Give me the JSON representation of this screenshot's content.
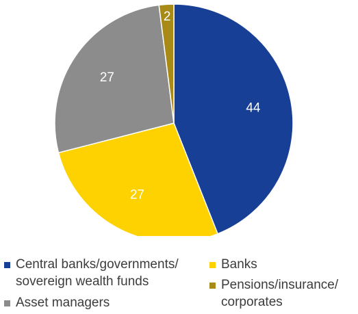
{
  "chart_data": {
    "type": "pie",
    "title": "",
    "slices": [
      {
        "label": "Central banks/governments/ sovereign wealth funds",
        "value": 44,
        "color": "#173f95",
        "data_label": "44",
        "label_color": "#ffffff"
      },
      {
        "label": "Banks",
        "value": 27,
        "color": "#fdd200",
        "data_label": "27",
        "label_color": "#ffffff"
      },
      {
        "label": "Asset managers",
        "value": 27,
        "color": "#8c8c8c",
        "data_label": "27",
        "label_color": "#ffffff"
      },
      {
        "label": "Pensions/insurance/ corporates",
        "value": 2,
        "color": "#a88a17",
        "data_label": "2",
        "label_color": "#ffffff"
      }
    ],
    "start_angle_deg": 0,
    "direction": "clockwise",
    "legend_placement": "bottom"
  },
  "legend": [
    {
      "label": "Central banks/governments/ sovereign wealth funds",
      "color": "#173f95"
    },
    {
      "label": "Banks",
      "color": "#fdd200"
    },
    {
      "label": "Asset managers",
      "color": "#8c8c8c"
    },
    {
      "label": "Pensions/insurance/ corporates",
      "color": "#a88a17"
    }
  ]
}
